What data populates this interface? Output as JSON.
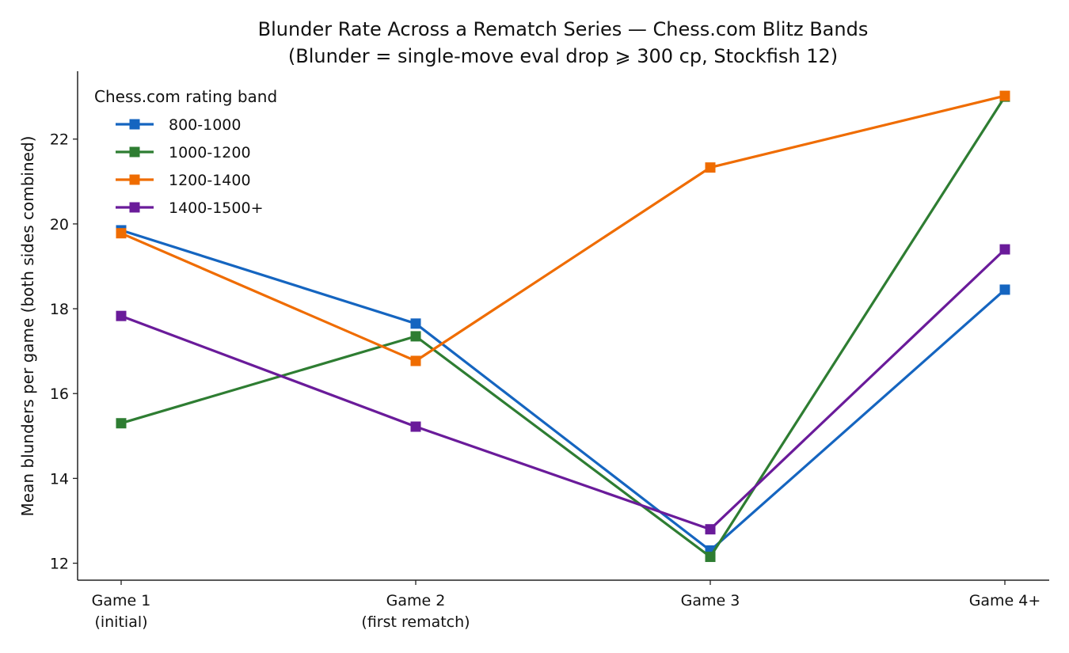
{
  "chart_data": {
    "type": "line",
    "title": "Blunder Rate Across a Rematch Series — Chess.com Blitz Bands",
    "subtitle": "(Blunder = single-move eval drop ⩾ 300 cp, Stockfish 12)",
    "xlabel": "",
    "ylabel": "Mean blunders per game (both sides combined)",
    "categories": [
      [
        "Game 1",
        "(initial)"
      ],
      [
        "Game 2",
        "(first rematch)"
      ],
      [
        "Game 3"
      ],
      [
        "Game 4+"
      ]
    ],
    "ylim": [
      11.6,
      23.6
    ],
    "yticks": [
      12,
      14,
      16,
      18,
      20,
      22
    ],
    "grid": false,
    "legend": {
      "title": "Chess.com rating band",
      "placement": "top-left"
    },
    "series": [
      {
        "name": "800-1000",
        "color": "#1565c0",
        "values": [
          19.85,
          17.65,
          12.3,
          18.45
        ]
      },
      {
        "name": "1000-1200",
        "color": "#2e7d32",
        "values": [
          15.3,
          17.35,
          12.15,
          23.0
        ]
      },
      {
        "name": "1200-1400",
        "color": "#ef6c00",
        "values": [
          19.78,
          16.77,
          21.33,
          23.02
        ]
      },
      {
        "name": "1400-1500+",
        "color": "#6a1b9a",
        "values": [
          17.83,
          15.22,
          12.8,
          19.4
        ]
      }
    ]
  }
}
